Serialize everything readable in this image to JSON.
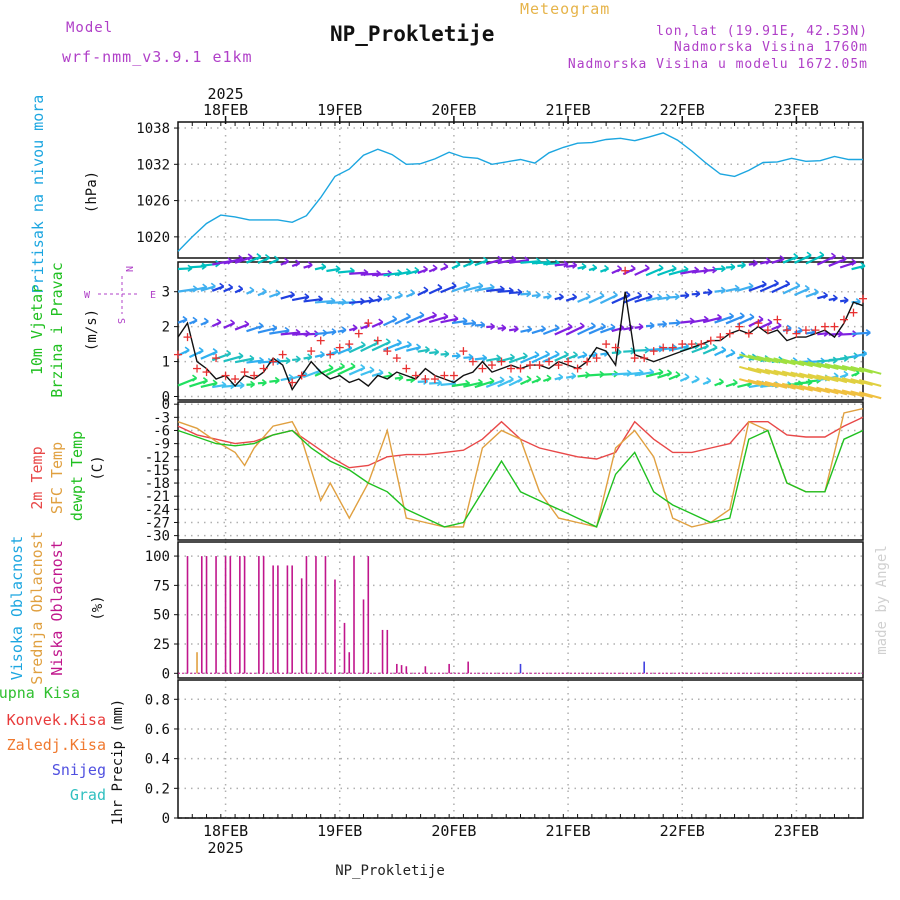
{
  "header": {
    "model_label": "Model",
    "model_run": "wrf-nmm_v3.9.1  e1km",
    "meteogram_label": "Meteogram",
    "station_title": "NP_Prokletije",
    "lonlat": "lon,lat (19.91E, 42.53N)",
    "altitude": "Nadmorska Visina 1760m",
    "model_altitude": "Nadmorska Visina u modelu 1672.05m"
  },
  "footer": {
    "station": "NP_Prokletije",
    "credit": "made by Angel"
  },
  "time_axis": {
    "year": "2025",
    "days": [
      "18FEB",
      "19FEB",
      "20FEB",
      "21FEB",
      "22FEB",
      "23FEB"
    ]
  },
  "chart_data": [
    {
      "type": "line",
      "panel": "pressure",
      "ylabel_title": "Pritisak na nivou mora",
      "ylabel_unit": "(hPa)",
      "yticks": [
        1020,
        1026,
        1032,
        1038
      ],
      "ylim": [
        1016.5,
        1039
      ],
      "xlim": [
        0,
        144
      ],
      "grid": true,
      "series": [
        {
          "color": "#1ca6e0",
          "x": [
            0,
            3,
            6,
            9,
            12,
            15,
            18,
            21,
            24,
            27,
            30,
            33,
            36,
            39,
            42,
            45,
            48,
            51,
            54,
            57,
            60,
            63,
            66,
            69,
            72,
            75,
            78,
            81,
            84,
            87,
            90,
            93,
            96,
            99,
            102,
            105,
            108,
            111,
            114,
            117,
            120,
            123,
            126,
            129,
            132,
            135,
            138,
            141,
            144
          ],
          "y": [
            1017.6,
            1020,
            1022.2,
            1023.6,
            1023.3,
            1022.8,
            1022.8,
            1022.8,
            1022.4,
            1023.5,
            1026.5,
            1030,
            1031.2,
            1033.5,
            1034.5,
            1033.6,
            1032,
            1032.1,
            1032.9,
            1034,
            1033.2,
            1033,
            1032,
            1032.4,
            1032.8,
            1032.2,
            1033.9,
            1034.8,
            1035.5,
            1035.6,
            1036.1,
            1036.3,
            1035.9,
            1036.5,
            1037.2,
            1036,
            1034.2,
            1032.2,
            1030.4,
            1030,
            1031,
            1032.3,
            1032.4,
            1033,
            1032.5,
            1032.6,
            1033.3,
            1032.8,
            1032.8
          ]
        }
      ]
    },
    {
      "type": "line",
      "panel": "wind",
      "ylabel_title_1": "10m Vjetar",
      "ylabel_title_2": "Brzina i Pravac",
      "ylabel_unit": "(m/s)",
      "compass": {
        "n": "N",
        "w": "W",
        "e": "E",
        "s": "S"
      },
      "yticks": [
        0,
        1,
        2,
        3
      ],
      "ylim": [
        -0.1,
        3.85
      ],
      "xlim": [
        0,
        144
      ],
      "grid": true,
      "series": [
        {
          "style": "line",
          "color": "#111111",
          "x": [
            0,
            2,
            4,
            6,
            8,
            10,
            12,
            14,
            16,
            18,
            20,
            22,
            24,
            26,
            28,
            30,
            32,
            34,
            36,
            38,
            40,
            42,
            44,
            46,
            48,
            50,
            52,
            54,
            56,
            58,
            60,
            62,
            64,
            66,
            68,
            70,
            72,
            74,
            76,
            78,
            80,
            82,
            84,
            86,
            88,
            90,
            92,
            94,
            96,
            98,
            100,
            102,
            104,
            106,
            108,
            110,
            112,
            114,
            116,
            118,
            120,
            122,
            124,
            126,
            128,
            130,
            132,
            134,
            136,
            138,
            140,
            142,
            144
          ],
          "y": [
            1.7,
            2.1,
            1.0,
            0.8,
            0.5,
            0.6,
            0.3,
            0.6,
            0.5,
            0.7,
            1.1,
            0.9,
            0.2,
            0.6,
            1.0,
            0.7,
            0.5,
            0.6,
            0.4,
            0.5,
            0.3,
            0.6,
            0.5,
            0.7,
            0.6,
            0.5,
            0.8,
            0.6,
            0.5,
            0.4,
            0.6,
            0.7,
            1.0,
            0.7,
            0.8,
            0.9,
            0.8,
            0.9,
            0.9,
            0.8,
            1.0,
            0.9,
            0.8,
            1.0,
            1.4,
            1.3,
            0.9,
            3.0,
            1.2,
            1.1,
            1.0,
            1.1,
            1.2,
            1.3,
            1.4,
            1.5,
            1.6,
            1.6,
            1.8,
            1.9,
            1.8,
            2.0,
            1.8,
            1.9,
            1.6,
            1.7,
            1.7,
            1.8,
            1.9,
            1.7,
            2.1,
            2.7,
            2.6
          ]
        },
        {
          "style": "plus",
          "color": "#e83030",
          "x": [
            0,
            2,
            4,
            6,
            8,
            10,
            12,
            14,
            16,
            18,
            20,
            22,
            24,
            26,
            28,
            30,
            32,
            34,
            36,
            38,
            40,
            42,
            44,
            46,
            48,
            50,
            52,
            54,
            56,
            58,
            60,
            62,
            64,
            66,
            68,
            70,
            72,
            74,
            76,
            78,
            80,
            82,
            84,
            86,
            88,
            90,
            92,
            94,
            96,
            98,
            100,
            102,
            104,
            106,
            108,
            110,
            112,
            114,
            116,
            118,
            120,
            122,
            124,
            126,
            128,
            130,
            132,
            134,
            136,
            138,
            140,
            142,
            144
          ],
          "y": [
            1.2,
            1.7,
            0.8,
            0.7,
            1.1,
            0.6,
            0.5,
            0.7,
            0.6,
            0.8,
            1.0,
            1.2,
            0.4,
            0.6,
            1.3,
            1.6,
            1.2,
            1.4,
            1.5,
            1.8,
            2.1,
            1.6,
            1.3,
            1.1,
            0.8,
            0.6,
            0.5,
            0.5,
            0.6,
            0.6,
            1.3,
            1.0,
            0.8,
            0.9,
            1.0,
            0.8,
            0.8,
            0.9,
            0.9,
            1.0,
            0.9,
            1.0,
            0.8,
            1.0,
            1.1,
            1.5,
            1.4,
            3.6,
            1.1,
            1.1,
            1.3,
            1.4,
            1.4,
            1.5,
            1.5,
            1.5,
            1.6,
            1.7,
            1.8,
            2.0,
            1.8,
            2.1,
            1.9,
            2.2,
            1.9,
            1.8,
            1.9,
            1.9,
            2.0,
            2.0,
            2.2,
            2.4,
            2.8
          ]
        }
      ]
    },
    {
      "type": "line",
      "panel": "temperature",
      "ylabel_t2": "2m Temp",
      "ylabel_sfc": "SFC Temp",
      "ylabel_dew": "dewpt Temp",
      "ylabel_unit": "(C)",
      "yticks": [
        0,
        -3,
        -6,
        -9,
        -12,
        -15,
        -18,
        -21,
        -24,
        -27,
        -30
      ],
      "ylim": [
        -31,
        0.5
      ],
      "xlim": [
        0,
        144
      ],
      "grid": true,
      "series": [
        {
          "color": "#e84848",
          "x": [
            0,
            4,
            8,
            12,
            16,
            20,
            24,
            28,
            32,
            36,
            40,
            44,
            48,
            52,
            56,
            60,
            64,
            68,
            72,
            76,
            80,
            84,
            88,
            92,
            96,
            100,
            104,
            108,
            112,
            116,
            120,
            124,
            128,
            132,
            136,
            140,
            144
          ],
          "y": [
            -5,
            -7,
            -8,
            -9,
            -8.5,
            -7,
            -6,
            -9,
            -12,
            -14.5,
            -14,
            -12,
            -11.5,
            -11.5,
            -11,
            -10.5,
            -8,
            -4,
            -8,
            -10,
            -11,
            -12,
            -12.5,
            -11,
            -4,
            -8,
            -11,
            -11,
            -10,
            -9,
            -4,
            -4,
            -7,
            -7.5,
            -7.5,
            -5,
            -3
          ]
        },
        {
          "color": "#e0a040",
          "x": [
            0,
            4,
            8,
            12,
            14,
            16,
            20,
            24,
            26,
            30,
            32,
            36,
            40,
            44,
            48,
            52,
            56,
            60,
            64,
            68,
            72,
            76,
            80,
            84,
            88,
            92,
            96,
            100,
            104,
            108,
            112,
            116,
            120,
            124,
            128,
            132,
            136,
            140,
            144
          ],
          "y": [
            -4,
            -5.5,
            -8.5,
            -11,
            -14,
            -10,
            -5,
            -4,
            -8,
            -22,
            -18,
            -26,
            -18,
            -6,
            -26,
            -27,
            -28,
            -28,
            -10,
            -6,
            -8,
            -20,
            -26,
            -27,
            -28,
            -10,
            -6,
            -12,
            -26,
            -28,
            -27,
            -24,
            -4,
            -6,
            -18,
            -20,
            -20,
            -2,
            -1
          ]
        },
        {
          "color": "#20c020",
          "x": [
            0,
            4,
            8,
            12,
            16,
            20,
            24,
            28,
            32,
            36,
            40,
            44,
            48,
            52,
            56,
            60,
            64,
            68,
            72,
            76,
            80,
            84,
            88,
            92,
            96,
            100,
            104,
            108,
            112,
            116,
            120,
            124,
            128,
            132,
            136,
            140,
            144
          ],
          "y": [
            -6,
            -7.5,
            -9,
            -9.5,
            -9,
            -7,
            -6,
            -10,
            -13,
            -15,
            -18,
            -20,
            -24,
            -26,
            -28,
            -27,
            -20,
            -13,
            -20,
            -22,
            -24,
            -26,
            -28,
            -16,
            -11,
            -20,
            -23,
            -25,
            -27,
            -26,
            -8,
            -6,
            -18,
            -20,
            -20,
            -8,
            -6
          ]
        }
      ]
    },
    {
      "type": "bar",
      "panel": "cloud",
      "ylabel_high": "Visoka Oblacnost",
      "ylabel_mid": "Srednja Oblacnost",
      "ylabel_low": "Niska Oblacnost",
      "ylabel_unit": "(%)",
      "yticks": [
        0,
        25,
        50,
        75,
        100
      ],
      "ylim": [
        -4,
        112
      ],
      "xlim": [
        0,
        144
      ],
      "grid": true,
      "series": [
        {
          "color": "#c0168c",
          "x": [
            2,
            5,
            6,
            8,
            10,
            11,
            13,
            14,
            17,
            18,
            20,
            21,
            23,
            24,
            26,
            27,
            29,
            31,
            33,
            35,
            36,
            37,
            39,
            40,
            43,
            44,
            46,
            47,
            48,
            52,
            57,
            61
          ],
          "y": [
            100,
            100,
            100,
            100,
            100,
            100,
            100,
            100,
            100,
            100,
            92,
            92,
            92,
            92,
            81,
            100,
            100,
            100,
            80,
            43,
            18,
            100,
            63,
            100,
            37,
            37,
            8,
            7,
            6,
            6,
            8,
            10
          ]
        },
        {
          "color": "#e0a040",
          "x": [
            4
          ],
          "y": [
            18
          ]
        },
        {
          "color": "#4040e0",
          "x": [
            72,
            98
          ],
          "y": [
            8,
            10
          ]
        }
      ]
    },
    {
      "type": "bar",
      "panel": "precip",
      "legend": [
        "Ukupna Kisa",
        "Konvek.Kisa",
        "Zaledj.Kisa",
        "Snijeg",
        "Grad"
      ],
      "legend_colors": [
        "#30c030",
        "#e83a3a",
        "#f07a30",
        "#5050e0",
        "#30c0c0"
      ],
      "ylabel_unit": "1hr Precip (mm)",
      "yticks": [
        0,
        0.2,
        0.4,
        0.6,
        0.8
      ],
      "ylim": [
        0,
        0.93
      ],
      "xlim": [
        0,
        144
      ],
      "grid": true,
      "series": []
    }
  ]
}
